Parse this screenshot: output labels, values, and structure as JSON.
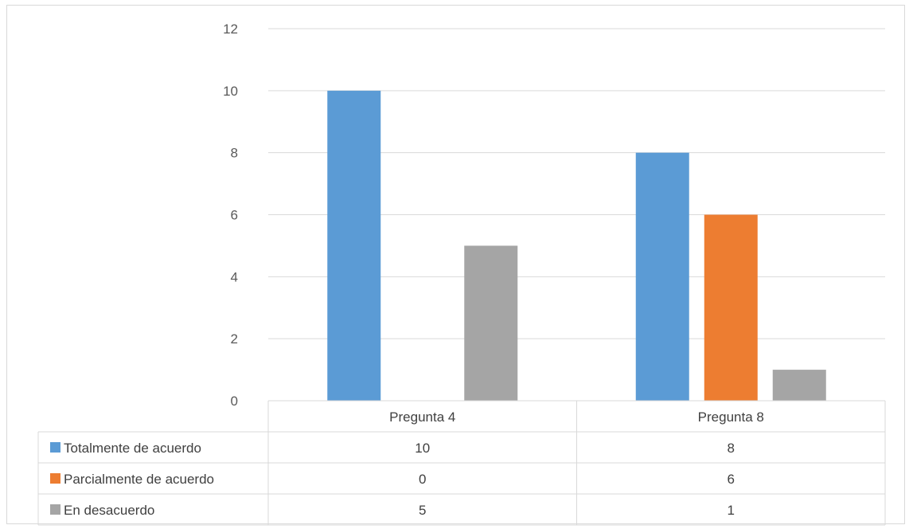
{
  "chart_data": {
    "type": "bar",
    "categories": [
      "Pregunta 4",
      "Pregunta 8"
    ],
    "series": [
      {
        "name": "Totalmente de acuerdo",
        "values": [
          10,
          8
        ],
        "color": "#5b9bd5"
      },
      {
        "name": "Parcialmente de acuerdo",
        "values": [
          0,
          6
        ],
        "color": "#ed7d31"
      },
      {
        "name": "En desacuerdo",
        "values": [
          5,
          1
        ],
        "color": "#a5a5a5"
      }
    ],
    "yticks": [
      "0",
      "2",
      "4",
      "6",
      "8",
      "10",
      "12"
    ],
    "ylim": [
      0,
      12
    ],
    "grid": true,
    "legend": "data-table",
    "table": {
      "values": [
        [
          "10",
          "8"
        ],
        [
          "0",
          "6"
        ],
        [
          "5",
          "1"
        ]
      ]
    }
  }
}
